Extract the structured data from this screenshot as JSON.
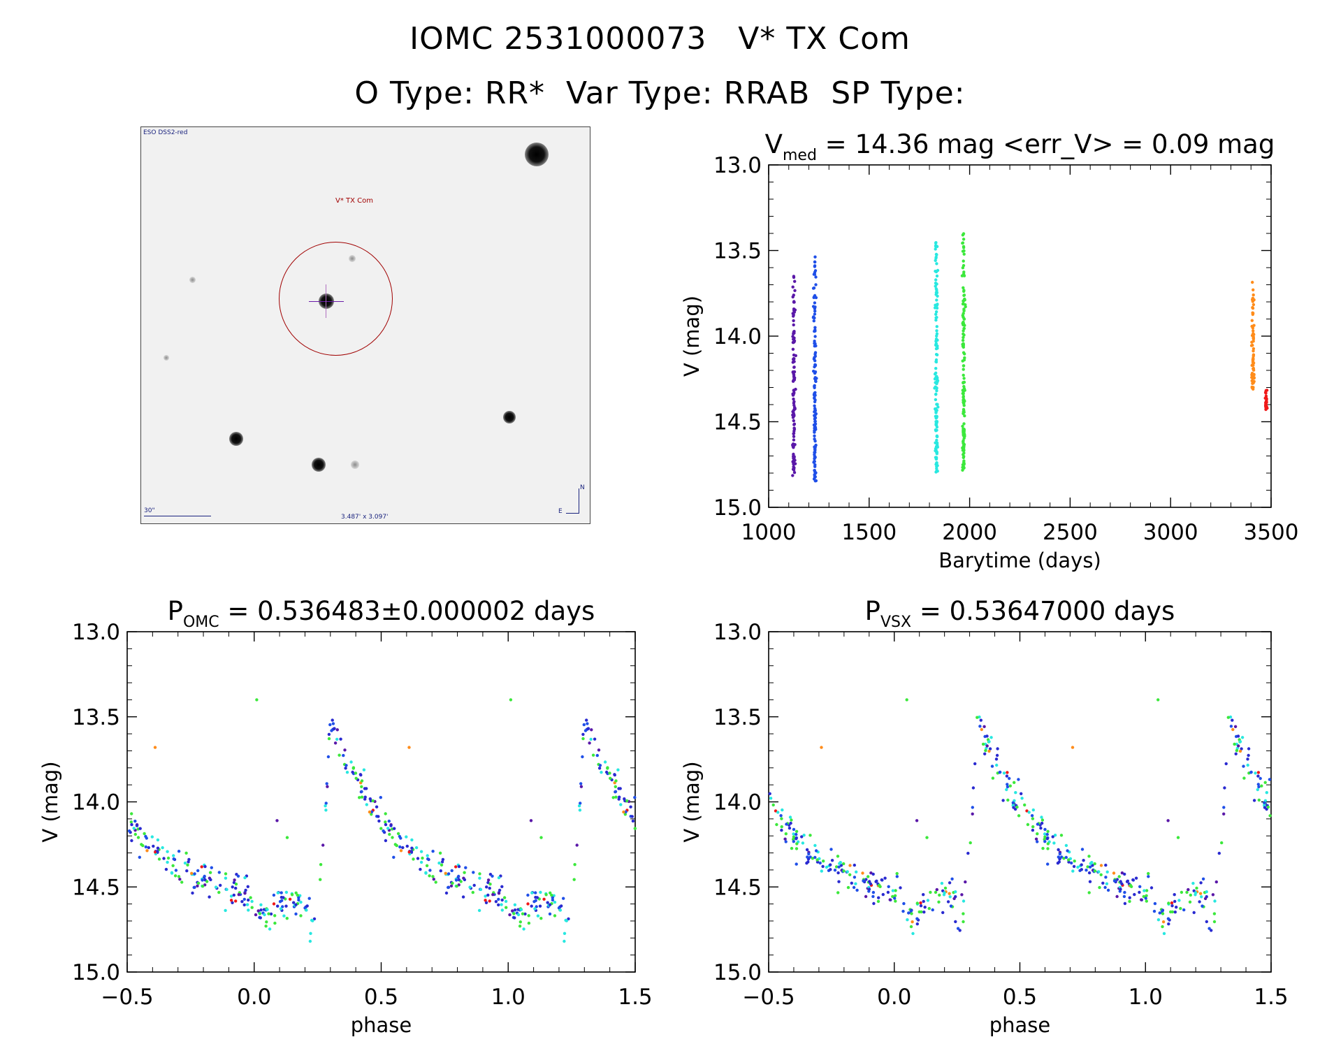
{
  "header": {
    "title_line1": "IOMC 2531000073   V* TX Com",
    "title_line2": "O Type: RR*  Var Type: RRAB  SP Type:"
  },
  "finder_chart": {
    "survey_label": "ESO DSS2-red",
    "target_label": "V* TX Com",
    "scale_label": "30\"",
    "size_label": "3.487' x 3.097'",
    "north_label": "N",
    "east_label": "E"
  },
  "colors": {
    "purple": "#5a18a8",
    "blue": "#1f4fe8",
    "cyan": "#28e8e0",
    "green": "#3ce83c",
    "orange": "#ff8c1a",
    "red": "#f01818",
    "darkblue": "#2a2ad0"
  },
  "chart_data": [
    {
      "type": "scatter",
      "title_main": "V",
      "title_sub": "med",
      "title_rest": " = 14.36 mag <err_V> = 0.09 mag",
      "xlabel": "Barytime (days)",
      "ylabel": "V (mag)",
      "xlim": [
        1000,
        3500
      ],
      "ylim": [
        15.0,
        13.0
      ],
      "y_inverted": true,
      "xticks": [
        "1000",
        "1500",
        "2000",
        "2500",
        "3000",
        "3500"
      ],
      "yticks": [
        "13.0",
        "13.5",
        "14.0",
        "14.5",
        "15.0"
      ],
      "series": [
        {
          "color_key": "purple",
          "x": 1125,
          "ymin": 13.65,
          "ymax": 14.82
        },
        {
          "color_key": "blue",
          "x": 1230,
          "ymin": 13.53,
          "ymax": 14.85
        },
        {
          "color_key": "cyan",
          "x": 1835,
          "ymin": 13.43,
          "ymax": 14.81
        },
        {
          "color_key": "green",
          "x": 1970,
          "ymin": 13.4,
          "ymax": 14.79
        },
        {
          "color_key": "orange",
          "x": 3410,
          "ymin": 13.68,
          "ymax": 14.32
        },
        {
          "color_key": "red",
          "x": 3475,
          "ymin": 14.3,
          "ymax": 14.43
        }
      ]
    },
    {
      "type": "scatter",
      "title_main": "P",
      "title_sub": "OMC",
      "title_rest": " = 0.536483±0.000002 days",
      "xlabel": "phase",
      "ylabel": "V (mag)",
      "xlim": [
        -0.5,
        1.5
      ],
      "ylim": [
        15.0,
        13.0
      ],
      "y_inverted": true,
      "xticks": [
        "−0.5",
        "0.0",
        "0.5",
        "1.0",
        "1.5"
      ],
      "yticks": [
        "13.0",
        "13.5",
        "14.0",
        "14.5",
        "15.0"
      ],
      "max_phase": 0.3,
      "bright_mag": 13.52,
      "faint_mag": 14.62,
      "outliers": [
        {
          "x": 0.01,
          "y": 13.4,
          "color_key": "green"
        },
        {
          "x": -0.39,
          "y": 13.68,
          "color_key": "orange"
        },
        {
          "x": 0.09,
          "y": 14.11,
          "color_key": "purple"
        },
        {
          "x": 0.13,
          "y": 14.21,
          "color_key": "green"
        }
      ]
    },
    {
      "type": "scatter",
      "title_main": "P",
      "title_sub": "VSX",
      "title_rest": " = 0.53647000 days",
      "xlabel": "phase",
      "ylabel": "V (mag)",
      "xlim": [
        -0.5,
        1.5
      ],
      "ylim": [
        15.0,
        13.0
      ],
      "y_inverted": true,
      "xticks": [
        "−0.5",
        "0.0",
        "0.5",
        "1.0",
        "1.5"
      ],
      "yticks": [
        "13.0",
        "13.5",
        "14.0",
        "14.5",
        "15.0"
      ],
      "max_phase": 0.33,
      "bright_mag": 13.5,
      "faint_mag": 14.6,
      "outliers": [
        {
          "x": 0.05,
          "y": 13.4,
          "color_key": "green"
        },
        {
          "x": -0.29,
          "y": 13.68,
          "color_key": "orange"
        },
        {
          "x": 0.09,
          "y": 14.11,
          "color_key": "purple"
        },
        {
          "x": 0.13,
          "y": 14.21,
          "color_key": "green"
        }
      ]
    }
  ]
}
